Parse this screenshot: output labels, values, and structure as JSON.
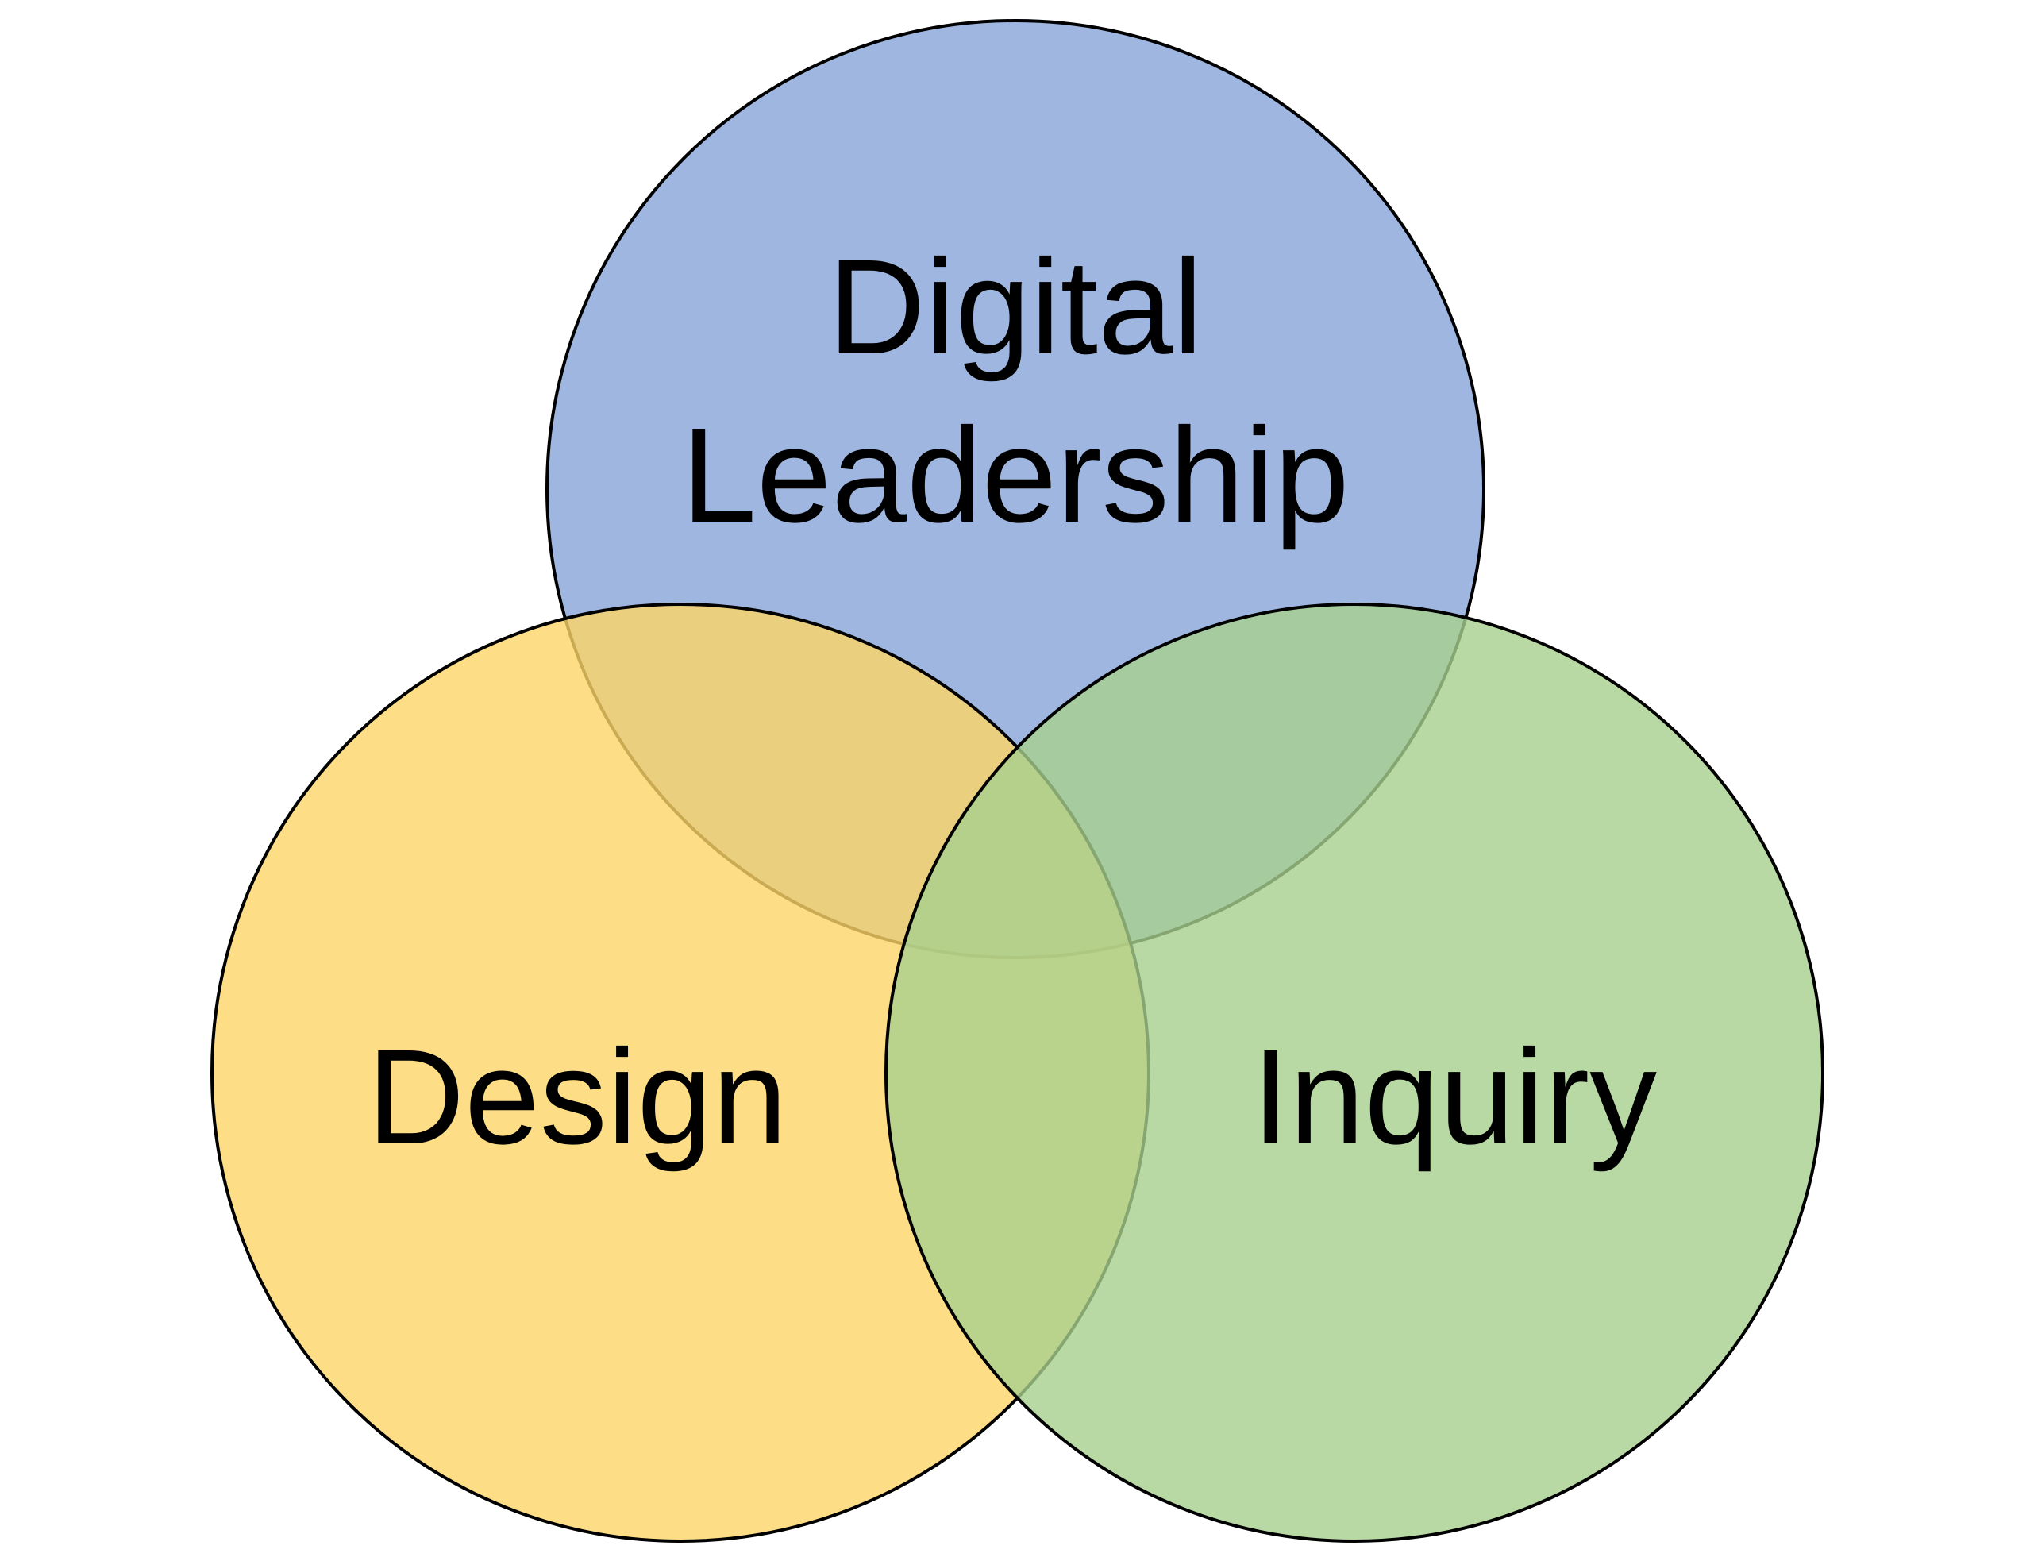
{
  "venn": {
    "sets": [
      {
        "id": "digital-leadership",
        "lines": [
          "Digital",
          "Leadership"
        ],
        "color": "#8eaadb"
      },
      {
        "id": "design",
        "lines": [
          "Design"
        ],
        "color": "#fdd466"
      },
      {
        "id": "inquiry",
        "lines": [
          "Inquiry"
        ],
        "color": "#a8d08d"
      }
    ],
    "outline_color": "#000000",
    "text_color": "#000000",
    "background": "#ffffff"
  }
}
